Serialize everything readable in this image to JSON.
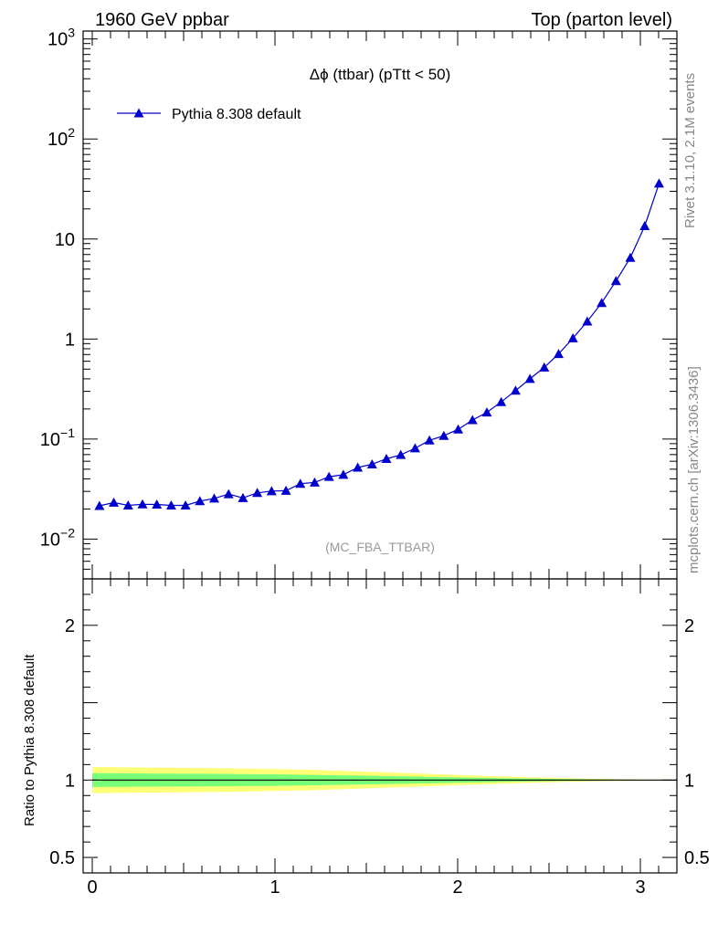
{
  "header": {
    "left": "1960 GeV ppbar",
    "right": "Top (parton level)"
  },
  "side_labels": {
    "rivet": "Rivet 3.1.10,  2.1M events",
    "mcplots": "mcplots.cern.ch [arXiv:1306.3436]"
  },
  "chart_data": [
    {
      "type": "line",
      "title": "Δϕ (ttbar) (pTtt < 50)",
      "xlabel": "",
      "ylabel": "",
      "log_y": true,
      "xlim": [
        -0.05,
        3.2
      ],
      "ylim": [
        0.004,
        1200
      ],
      "y_ticks": [
        {
          "value": 0.01,
          "base": "10",
          "exp": "−2"
        },
        {
          "value": 0.1,
          "base": "10",
          "exp": "−1"
        },
        {
          "value": 1,
          "base": "1",
          "exp": ""
        },
        {
          "value": 10,
          "base": "10",
          "exp": ""
        },
        {
          "value": 100,
          "base": "10",
          "exp": "2"
        },
        {
          "value": 1000,
          "base": "10",
          "exp": "3"
        }
      ],
      "legend": {
        "position": "top-left",
        "entries": [
          "Pythia 8.308 default"
        ]
      },
      "annotation": "(MC_FBA_TTBAR)",
      "series": [
        {
          "name": "Pythia 8.308 default",
          "color": "#0000cc",
          "marker": "triangle",
          "x": [
            0.0393,
            0.1178,
            0.1963,
            0.2749,
            0.3534,
            0.432,
            0.5105,
            0.589,
            0.6676,
            0.7461,
            0.8247,
            0.9032,
            0.9817,
            1.0603,
            1.1388,
            1.2174,
            1.2959,
            1.3744,
            1.453,
            1.5315,
            1.6101,
            1.6886,
            1.7671,
            1.8457,
            1.9242,
            2.0028,
            2.0813,
            2.1598,
            2.2384,
            2.3169,
            2.3955,
            2.474,
            2.5525,
            2.6311,
            2.7096,
            2.7882,
            2.8667,
            2.9452,
            3.0238,
            3.1023
          ],
          "y": [
            0.0215,
            0.0232,
            0.0217,
            0.0223,
            0.0222,
            0.0217,
            0.0217,
            0.024,
            0.0255,
            0.0282,
            0.0258,
            0.029,
            0.0302,
            0.0305,
            0.0358,
            0.0368,
            0.042,
            0.044,
            0.052,
            0.056,
            0.0635,
            0.0695,
            0.081,
            0.097,
            0.108,
            0.125,
            0.155,
            0.185,
            0.235,
            0.305,
            0.4,
            0.52,
            0.71,
            1.02,
            1.5,
            2.3,
            3.8,
            6.5,
            13.5,
            36.0
          ]
        }
      ]
    },
    {
      "type": "area",
      "title": "",
      "xlabel": "",
      "ylabel": "Ratio to Pythia 8.308 default",
      "xlim": [
        -0.05,
        3.2
      ],
      "ylim": [
        0.4,
        2.3
      ],
      "x_ticks": [
        "0",
        "1",
        "2",
        "3"
      ],
      "y_ticks": [
        "0.5",
        "1",
        "2"
      ],
      "ratio_line": 1,
      "band_x": [
        0.0,
        0.2,
        0.4,
        0.6,
        0.8,
        1.0,
        1.2,
        1.4,
        1.6,
        1.8,
        2.0,
        2.2,
        2.4,
        2.6,
        2.8,
        3.0,
        3.2
      ],
      "band_outer_half_width": [
        0.085,
        0.082,
        0.08,
        0.078,
        0.075,
        0.071,
        0.066,
        0.058,
        0.05,
        0.042,
        0.033,
        0.025,
        0.018,
        0.012,
        0.007,
        0.004,
        0.002
      ],
      "band_inner_half_width": [
        0.045,
        0.043,
        0.042,
        0.041,
        0.039,
        0.037,
        0.034,
        0.03,
        0.026,
        0.022,
        0.017,
        0.013,
        0.009,
        0.006,
        0.004,
        0.002,
        0.001
      ],
      "colors": {
        "outer": "#ffff77",
        "inner": "#77ff77",
        "line": "#000000"
      }
    }
  ]
}
